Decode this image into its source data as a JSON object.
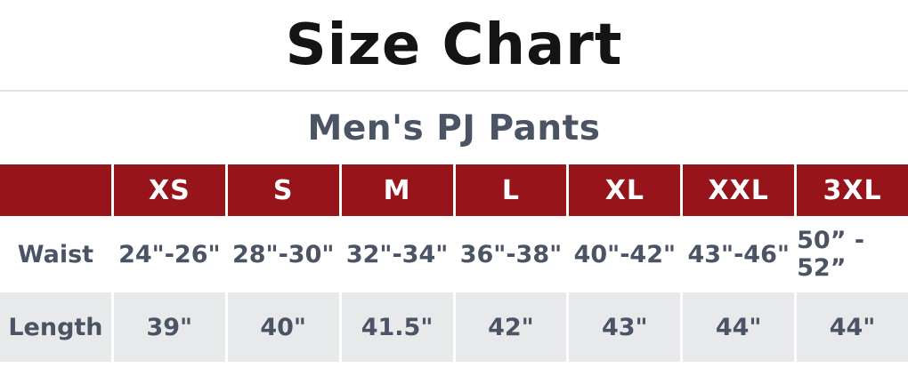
{
  "title": "Size Chart",
  "subtitle": "Men's PJ Pants",
  "colors": {
    "header_bg": "#97151a",
    "header_text": "#ffffff",
    "body_text": "#4a5464",
    "alt_row_bg": "#e8e9ea",
    "divider": "#e3e3e3",
    "title_text": "#141414"
  },
  "table": {
    "sizes": [
      "XS",
      "S",
      "M",
      "L",
      "XL",
      "XXL",
      "3XL"
    ],
    "rows": [
      {
        "label": "Waist",
        "values": [
          "24\"-26\"",
          "28\"-30\"",
          "32\"-34\"",
          "36\"-38\"",
          "40\"-42\"",
          "43\"-46\"",
          "50” - 52”"
        ]
      },
      {
        "label": "Length",
        "values": [
          "39\"",
          "40\"",
          "41.5\"",
          "42\"",
          "43\"",
          "44\"",
          "44\""
        ]
      }
    ]
  }
}
